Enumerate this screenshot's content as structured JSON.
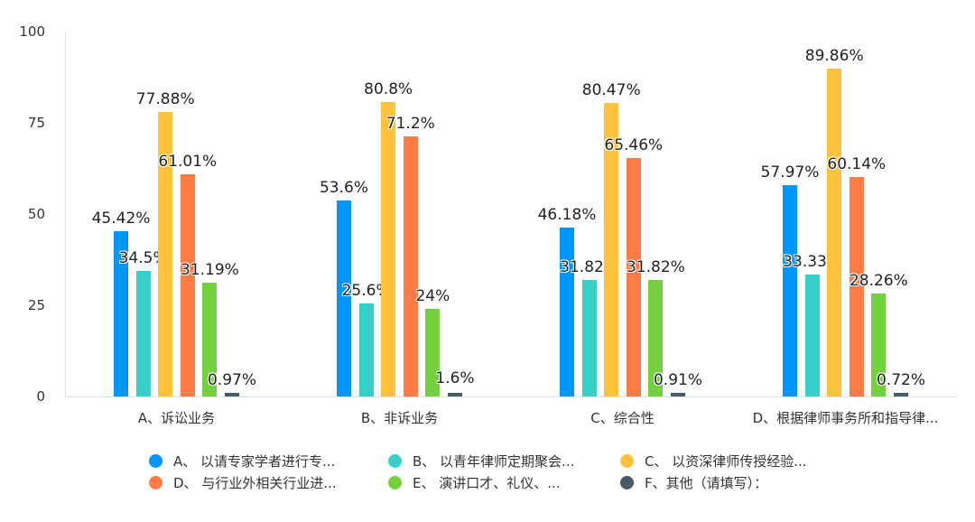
{
  "chart_data": {
    "type": "bar",
    "title": "",
    "xlabel": "",
    "ylabel": "",
    "ylim": [
      0,
      100
    ],
    "yticks": [
      0,
      25,
      50,
      75,
      100
    ],
    "grid": false,
    "legend_position": "bottom",
    "categories": [
      "A、诉讼业务",
      "B、非诉业务",
      "C、综合性",
      "D、根据律师事务所和指导律..."
    ],
    "series": [
      {
        "name": "A、 以请专家学者进行专...",
        "color": "#0096fa",
        "values": [
          45.42,
          53.6,
          46.18,
          57.97
        ],
        "labels": [
          "45.42%",
          "53.6%",
          "46.18%",
          "57.97%"
        ]
      },
      {
        "name": "B、 以青年律师定期聚会...",
        "color": "#36d0c9",
        "values": [
          34.5,
          25.6,
          31.82,
          33.33
        ],
        "labels": [
          "34.5%",
          "25.6%",
          "31.82%",
          "33.33%"
        ]
      },
      {
        "name": "C、 以资深律师传授经验...",
        "color": "#ffc23d",
        "values": [
          77.88,
          80.8,
          80.47,
          89.86
        ],
        "labels": [
          "77.88%",
          "80.8%",
          "80.47%",
          "89.86%"
        ]
      },
      {
        "name": "D、 与行业外相关行业进...",
        "color": "#ff7a45",
        "values": [
          61.01,
          71.2,
          65.46,
          60.14
        ],
        "labels": [
          "61.01%",
          "71.2%",
          "65.46%",
          "60.14%"
        ]
      },
      {
        "name": "E、 演讲口才、礼仪、...",
        "color": "#73d13d",
        "values": [
          31.19,
          24,
          31.82,
          28.26
        ],
        "labels": [
          "31.19%",
          "24%",
          "31.82%",
          "28.26%"
        ]
      },
      {
        "name": "F、其他（请填写）：",
        "color": "#4a5a67",
        "values": [
          0.97,
          1.6,
          0.91,
          0.72
        ],
        "labels": [
          "0.97%",
          "1.6%",
          "0.91%",
          "0.72%"
        ]
      }
    ]
  }
}
